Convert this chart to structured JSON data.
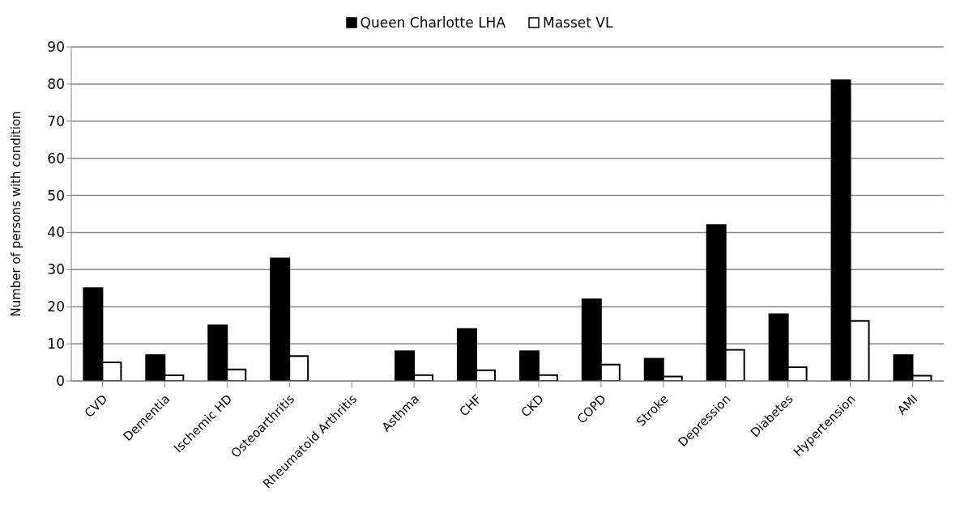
{
  "chart_data": {
    "type": "bar",
    "ylabel": "Number of persons with condition",
    "categories": [
      "CVD",
      "Dementia",
      "Ischemic HD",
      "Osteoarthritis",
      "Rheumatoid Arthritis",
      "Asthma",
      "CHF",
      "CKD",
      "COPD",
      "Stroke",
      "Depression",
      "Diabetes",
      "Hypertension",
      "AMI"
    ],
    "series": [
      {
        "name": "Queen Charlotte LHA",
        "color": "#000000",
        "values": [
          25,
          7,
          15,
          33,
          null,
          8,
          14,
          8,
          22,
          6,
          42,
          18,
          81,
          7
        ]
      },
      {
        "name": "Masset VL",
        "color": "#ffffff",
        "values": [
          5,
          1.5,
          3.1,
          6.7,
          null,
          1.6,
          2.9,
          1.6,
          4.4,
          1.2,
          8.4,
          3.7,
          16.2,
          1.4
        ]
      }
    ],
    "ylim": [
      0,
      90
    ],
    "yticks": [
      0,
      10,
      20,
      30,
      40,
      50,
      60,
      70,
      80,
      90
    ],
    "grid": "y",
    "legend": "top"
  }
}
